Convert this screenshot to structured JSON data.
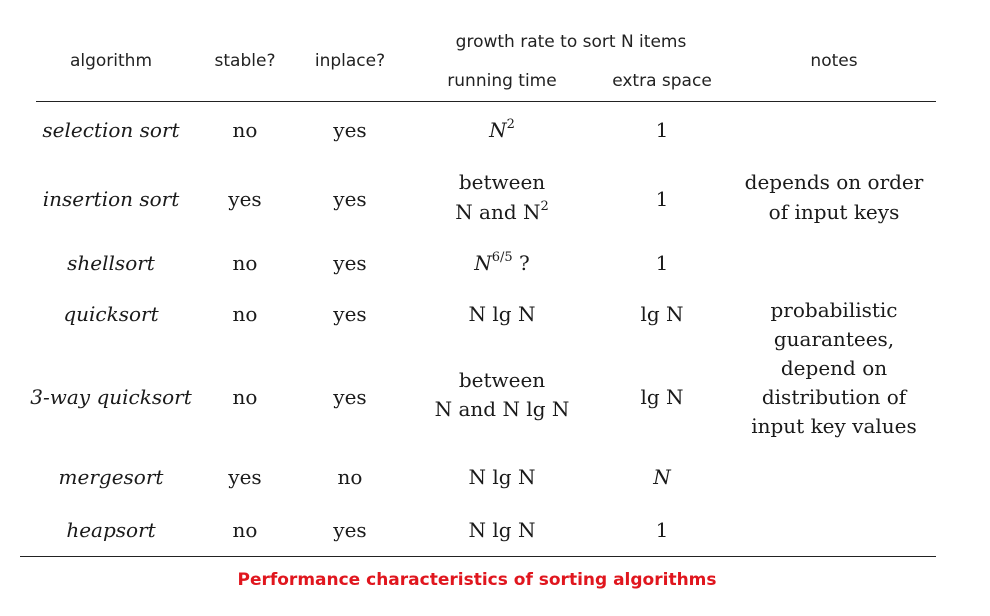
{
  "header": {
    "algorithm": "algorithm",
    "stable": "stable?",
    "inplace": "inplace?",
    "growth": "growth rate to sort N items",
    "running_time": "running time",
    "extra_space": "extra space",
    "notes": "notes"
  },
  "rows": [
    {
      "algorithm": "selection sort",
      "stable": "no",
      "inplace": "yes",
      "time_base": "N",
      "time_exp": "2",
      "space": "1"
    },
    {
      "algorithm": "insertion sort",
      "stable": "yes",
      "inplace": "yes",
      "time_line1": "between",
      "time_line2_base": "N and N",
      "time_line2_exp": "2",
      "space": "1",
      "notes_line1": "depends on order",
      "notes_line2": "of input keys"
    },
    {
      "algorithm": "shellsort",
      "stable": "no",
      "inplace": "yes",
      "time_base": "N",
      "time_exp": "6/5",
      "time_suffix": " ?",
      "space": "1"
    },
    {
      "algorithm": "quicksort",
      "stable": "no",
      "inplace": "yes",
      "time": "N lg N",
      "space": "lg N"
    },
    {
      "algorithm": "3-way quicksort",
      "stable": "no",
      "inplace": "yes",
      "time_line1": "between",
      "time_line2": "N and N lg N",
      "space": "lg N"
    },
    {
      "algorithm": "mergesort",
      "stable": "yes",
      "inplace": "no",
      "time": "N lg N",
      "space": "N"
    },
    {
      "algorithm": "heapsort",
      "stable": "no",
      "inplace": "yes",
      "time": "N lg N",
      "space": "1"
    }
  ],
  "notes_block": [
    "probabilistic",
    "guarantees,",
    "depend on",
    "distribution of",
    "input key values"
  ],
  "caption": "Performance characteristics of sorting algorithms",
  "colors": {
    "caption": "#e0161e",
    "text": "#1a1a1a"
  }
}
